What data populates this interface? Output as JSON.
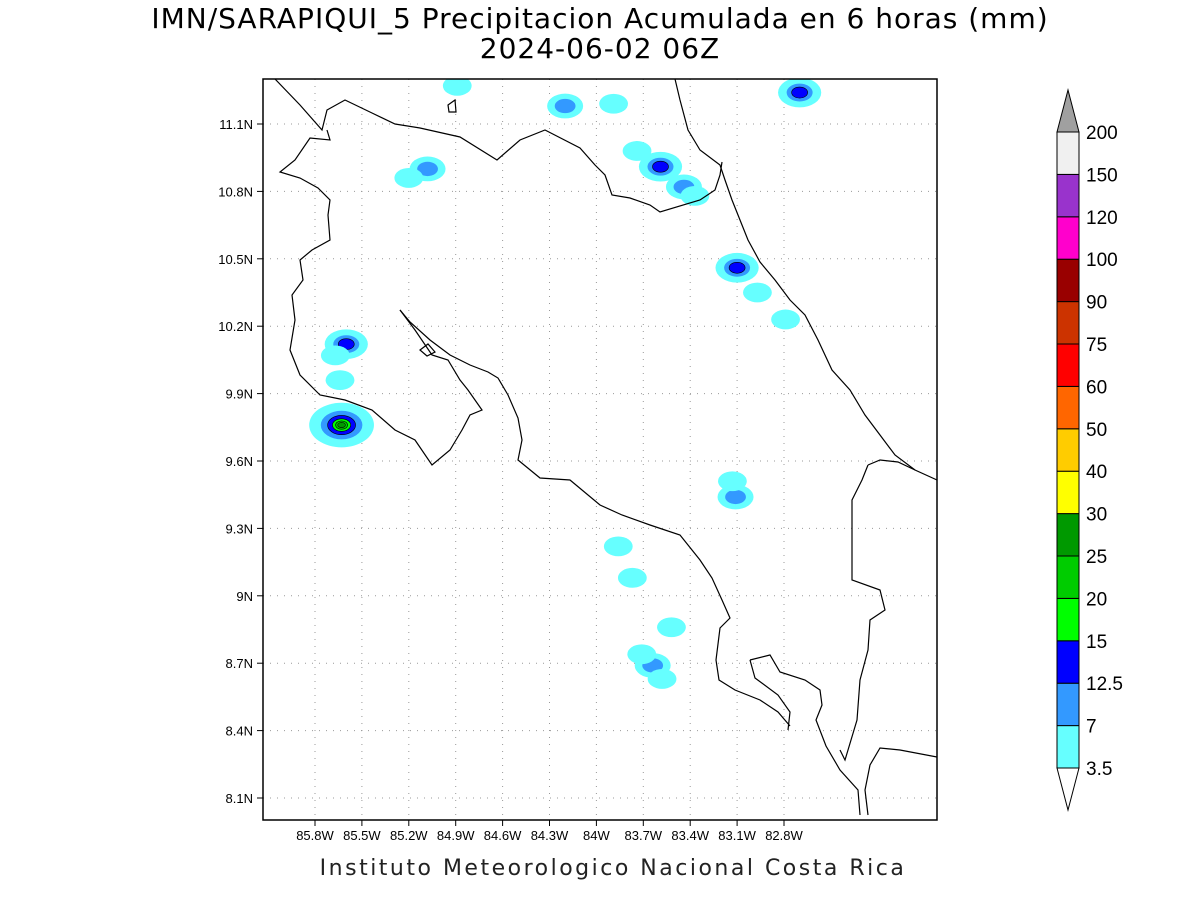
{
  "header": {
    "title_line1": "IMN/SARAPIQUI_5 Precipitacion Acumulada en 6 horas (mm)",
    "title_line2": "2024-06-02 06Z"
  },
  "footer": {
    "credit": "Instituto Meteorologico Nacional Costa Rica"
  },
  "map": {
    "lat_ticks": [
      {
        "value": 11.1,
        "label": "11.1N"
      },
      {
        "value": 10.8,
        "label": "10.8N"
      },
      {
        "value": 10.5,
        "label": "10.5N"
      },
      {
        "value": 10.2,
        "label": "10.2N"
      },
      {
        "value": 9.9,
        "label": "9.9N"
      },
      {
        "value": 9.6,
        "label": "9.6N"
      },
      {
        "value": 9.3,
        "label": "9.3N"
      },
      {
        "value": 9.0,
        "label": "9N"
      },
      {
        "value": 8.7,
        "label": "8.7N"
      },
      {
        "value": 8.4,
        "label": "8.4N"
      },
      {
        "value": 8.1,
        "label": "8.1N"
      }
    ],
    "lon_ticks": [
      {
        "value": -85.8,
        "label": "85.8W"
      },
      {
        "value": -85.5,
        "label": "85.5W"
      },
      {
        "value": -85.2,
        "label": "85.2W"
      },
      {
        "value": -84.9,
        "label": "84.9W"
      },
      {
        "value": -84.6,
        "label": "84.6W"
      },
      {
        "value": -84.3,
        "label": "84.3W"
      },
      {
        "value": -84.0,
        "label": "84W"
      },
      {
        "value": -83.7,
        "label": "83.7W"
      },
      {
        "value": -83.4,
        "label": "83.4W"
      },
      {
        "value": -83.1,
        "label": "83.1W"
      },
      {
        "value": -82.8,
        "label": "82.8W"
      }
    ],
    "grid": true,
    "precip_cells": [
      {
        "lon": -85.67,
        "lat": 9.77,
        "level": 3
      },
      {
        "lon": -85.63,
        "lat": 9.76,
        "level": 5
      },
      {
        "lon": -85.6,
        "lat": 10.12,
        "level": 2
      },
      {
        "lon": -83.59,
        "lat": 10.91,
        "level": 2
      },
      {
        "lon": -83.1,
        "lat": 10.46,
        "level": 2
      },
      {
        "lon": -83.44,
        "lat": 10.82,
        "level": 1
      },
      {
        "lon": -82.7,
        "lat": 11.24,
        "level": 2
      },
      {
        "lon": -83.11,
        "lat": 9.44,
        "level": 1
      },
      {
        "lon": -83.64,
        "lat": 8.69,
        "level": 1
      },
      {
        "lon": -84.2,
        "lat": 11.18,
        "level": 1
      },
      {
        "lon": -85.08,
        "lat": 10.9,
        "level": 1
      },
      {
        "lon": -85.2,
        "lat": 10.86,
        "level": 0
      },
      {
        "lon": -83.77,
        "lat": 9.08,
        "level": 0
      },
      {
        "lon": -83.86,
        "lat": 9.22,
        "level": 0
      },
      {
        "lon": -83.52,
        "lat": 8.86,
        "level": 0
      },
      {
        "lon": -83.37,
        "lat": 10.78,
        "level": 0
      },
      {
        "lon": -83.89,
        "lat": 11.19,
        "level": 0
      },
      {
        "lon": -83.74,
        "lat": 10.98,
        "level": 0
      },
      {
        "lon": -84.89,
        "lat": 11.27,
        "level": 0
      },
      {
        "lon": -85.64,
        "lat": 9.96,
        "level": 0
      },
      {
        "lon": -85.67,
        "lat": 10.07,
        "level": 0
      },
      {
        "lon": -82.97,
        "lat": 10.35,
        "level": 0
      },
      {
        "lon": -82.79,
        "lat": 10.23,
        "level": 0
      },
      {
        "lon": -83.13,
        "lat": 9.51,
        "level": 0
      },
      {
        "lon": -83.71,
        "lat": 8.74,
        "level": 0
      },
      {
        "lon": -83.58,
        "lat": 8.63,
        "level": 0
      }
    ]
  },
  "colorbar": {
    "top_color": "#a0a0a0",
    "bottom_color": "#ffffff",
    "levels": [
      {
        "label": "3.5",
        "color": "#66ffff"
      },
      {
        "label": "7",
        "color": "#3399ff"
      },
      {
        "label": "12.5",
        "color": "#0000ff"
      },
      {
        "label": "15",
        "color": "#00ff00"
      },
      {
        "label": "20",
        "color": "#00cc00"
      },
      {
        "label": "25",
        "color": "#009900"
      },
      {
        "label": "30",
        "color": "#ffff00"
      },
      {
        "label": "40",
        "color": "#ffcc00"
      },
      {
        "label": "50",
        "color": "#ff6600"
      },
      {
        "label": "60",
        "color": "#ff0000"
      },
      {
        "label": "75",
        "color": "#cc3300"
      },
      {
        "label": "90",
        "color": "#990000"
      },
      {
        "label": "100",
        "color": "#ff00cc"
      },
      {
        "label": "120",
        "color": "#9933cc"
      },
      {
        "label": "150",
        "color": "#f0f0f0"
      },
      {
        "label": "200",
        "color": ""
      }
    ]
  }
}
